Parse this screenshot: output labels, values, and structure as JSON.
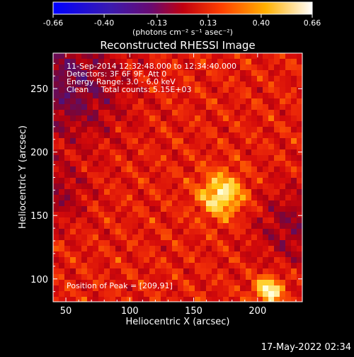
{
  "colorbar": {
    "ticks": [
      "-0.66",
      "-0.40",
      "-0.13",
      "0.13",
      "0.40",
      "0.66"
    ],
    "tick_values": [
      -0.66,
      -0.4,
      -0.13,
      0.13,
      0.4,
      0.66
    ],
    "range": [
      -0.66,
      0.66
    ],
    "unit_label": "(photons cm⁻² s⁻¹ asec⁻²)",
    "colormap": "RHESSI blue-purple-red-yellow-white"
  },
  "chart_data": {
    "type": "heatmap",
    "title": "Reconstructed RHESSI Image",
    "xlabel": "Heliocentric X (arcsec)",
    "ylabel": "Heliocentric Y (arcsec)",
    "xlim": [
      40,
      235
    ],
    "ylim": [
      82,
      278
    ],
    "xticks": [
      50,
      100,
      150,
      200
    ],
    "yticks": [
      100,
      150,
      200,
      250
    ],
    "peaks": [
      {
        "x": 209,
        "y": 91,
        "value": 0.66
      },
      {
        "x": 172,
        "y": 166,
        "value": 0.6
      }
    ],
    "annotations": [
      "11-Sep-2014 12:32:48.000 to 12:34:40.000",
      "Detectors: 3F 6F 9F, Att 0",
      "Energy Range: 3.0 - 6.0 keV",
      "Clean     Total counts: 5.15E+03"
    ],
    "peak_label": "Position of Peak = [209,91]"
  },
  "footer_date": "17-May-2022 02:34"
}
